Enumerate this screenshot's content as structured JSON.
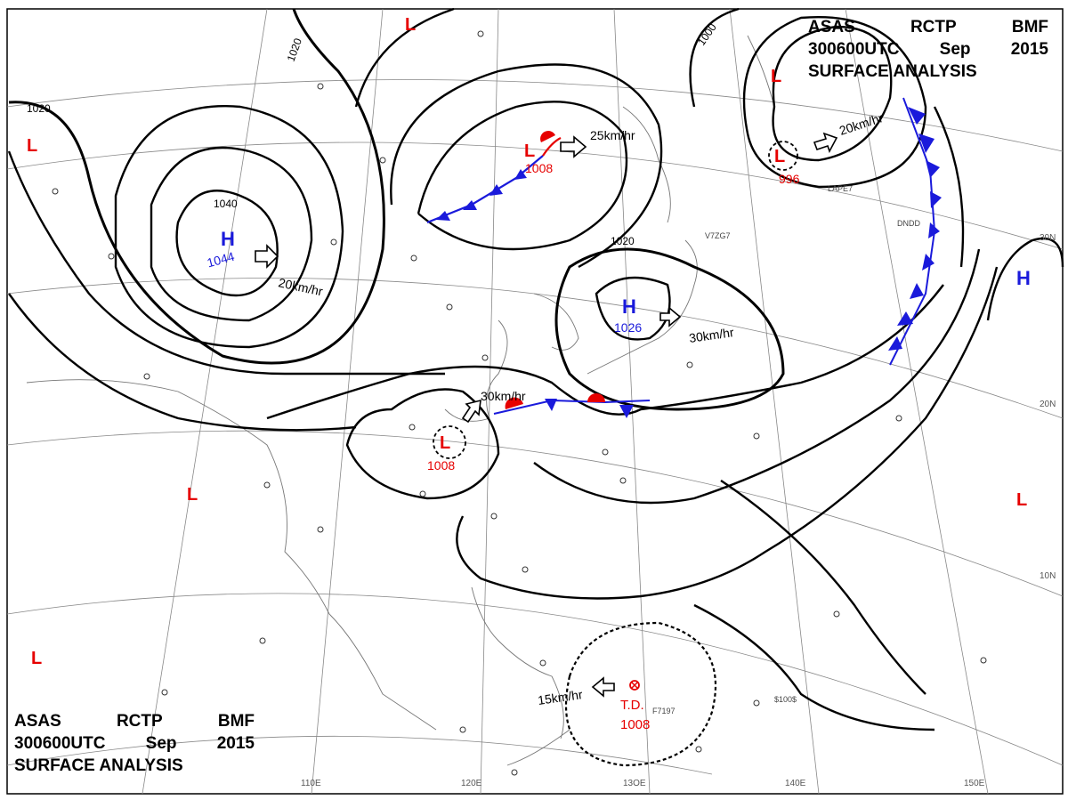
{
  "header": {
    "line1": [
      "ASAS",
      "RCTP",
      "BMF"
    ],
    "line2": [
      "300600UTC",
      "Sep",
      "2015"
    ],
    "line3": "SURFACE ANALYSIS"
  },
  "lon_labels": [
    "110E",
    "120E",
    "13OE",
    "140E",
    "150E"
  ],
  "lat_labels": [
    "30N",
    "20N",
    "10N"
  ],
  "isobar_labels": [
    "1040",
    "1020",
    "1020",
    "1020",
    "1000"
  ],
  "highs": [
    {
      "symbol": "H",
      "pressure": "1044"
    },
    {
      "symbol": "H",
      "pressure": "1026"
    },
    {
      "symbol": "H",
      "pressure": ""
    }
  ],
  "lows": [
    {
      "symbol": "L",
      "pressure": "1008"
    },
    {
      "symbol": "L",
      "pressure": "1008"
    },
    {
      "symbol": "L",
      "pressure": "996"
    },
    {
      "symbol": "L",
      "pressure": ""
    },
    {
      "symbol": "L",
      "pressure": ""
    },
    {
      "symbol": "L",
      "pressure": ""
    },
    {
      "symbol": "L",
      "pressure": ""
    },
    {
      "symbol": "L",
      "pressure": ""
    }
  ],
  "tropical_depression": {
    "label": "T.D.",
    "pressure": "1008"
  },
  "movements": [
    "20km/hr",
    "30km/hr",
    "25km/hr",
    "20km/hr",
    "30km/hr",
    "15km/hr"
  ],
  "station_codes": [
    "LAPE7",
    "DNDD",
    "V7ZG7",
    "F7197",
    "$100$"
  ],
  "colors": {
    "high": "#1a1adb",
    "low": "#e60000",
    "front_cold": "#1a1adb",
    "front_warm": "#e60000",
    "isobar": "#000000"
  }
}
